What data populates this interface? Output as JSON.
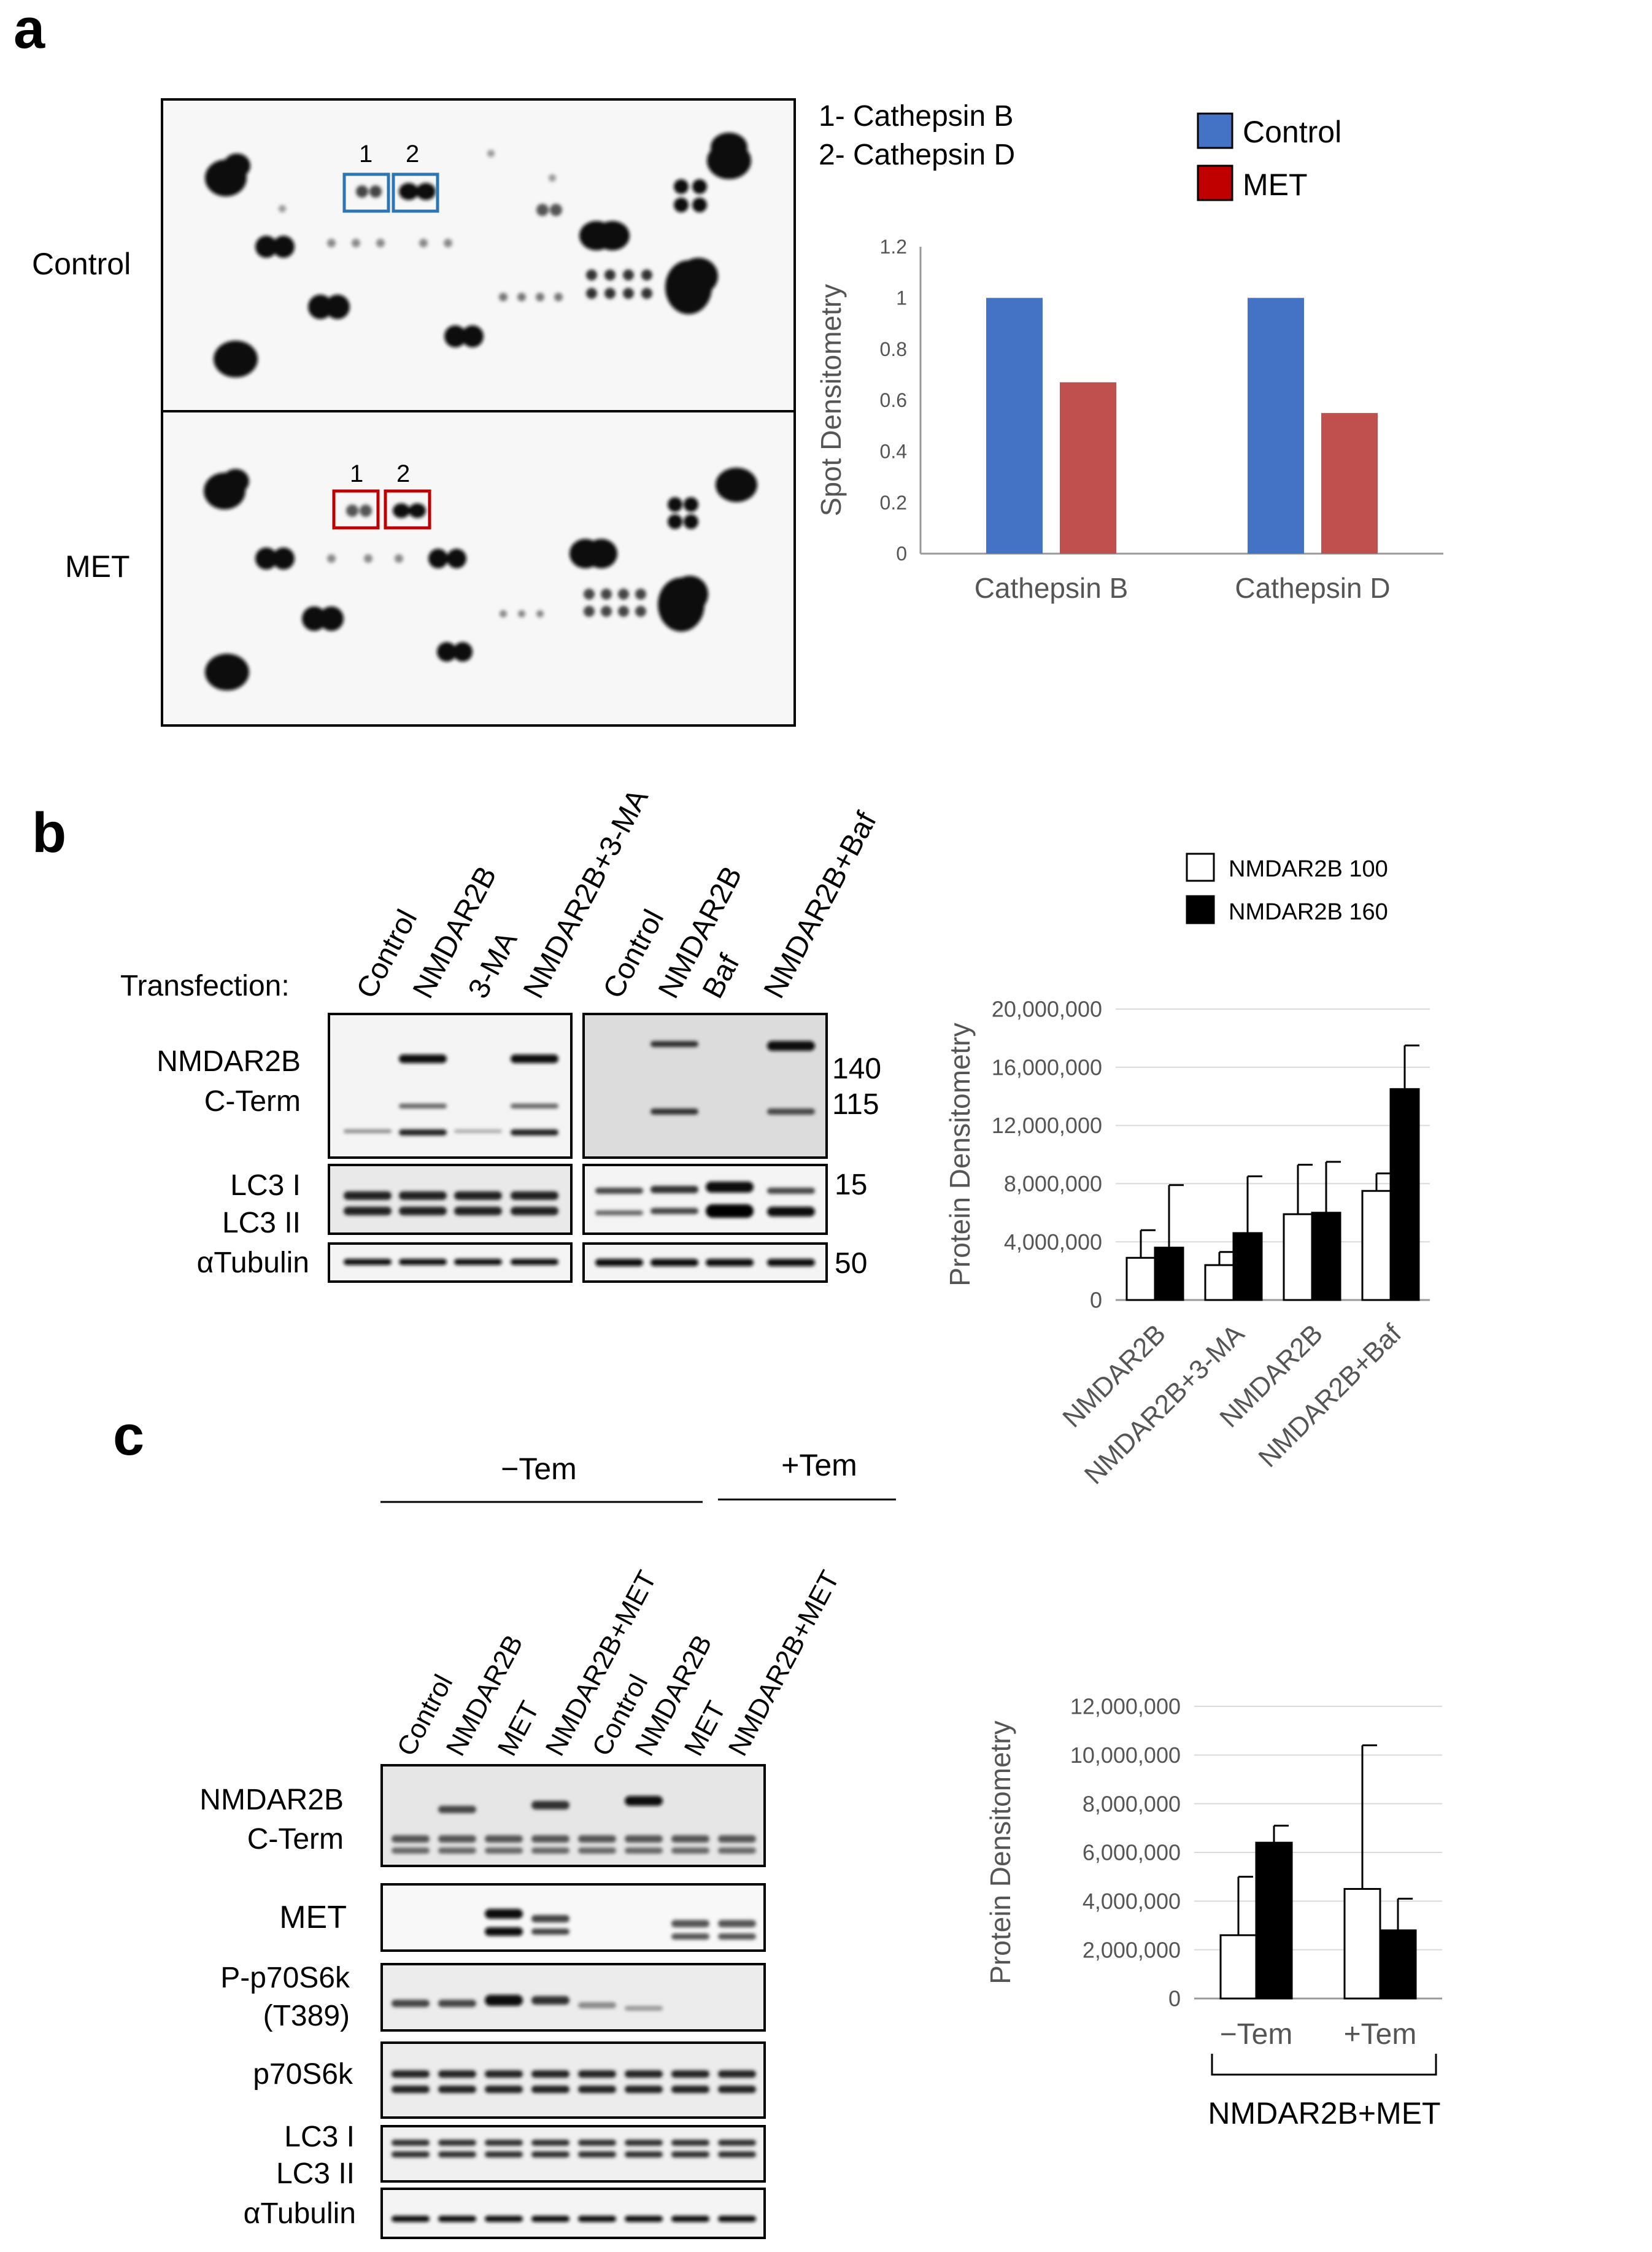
{
  "panels": {
    "a": {
      "letter": "a",
      "row_labels": [
        "Control",
        "MET"
      ],
      "spot_numbers": [
        "1",
        "2"
      ],
      "spot_key": [
        "1- Cathepsin B",
        "2- Cathepsin D"
      ],
      "colors": {
        "control": "#4472C4",
        "met": "#C00000",
        "met_bar": "#C0504D",
        "control_box": "#2E75B6",
        "met_box": "#C00000"
      }
    },
    "b": {
      "letter": "b",
      "transfection_label": "Transfection:",
      "lanes_left": [
        "Control",
        "NMDAR2B",
        "3-MA",
        "NMDAR2B+3-MA"
      ],
      "lanes_right": [
        "Control",
        "NMDAR2B",
        "Baf",
        "NMDAR2B+Baf"
      ],
      "blot_labels": [
        "NMDAR2B",
        "C-Term",
        "LC3 I",
        "LC3 II",
        "αTubulin"
      ],
      "mw_markers": [
        "140",
        "115",
        "15",
        "50"
      ]
    },
    "c": {
      "letter": "c",
      "group_labels": [
        "−Tem",
        "+Tem"
      ],
      "lanes": [
        "Control",
        "NMDAR2B",
        "MET",
        "NMDAR2B+MET",
        "Control",
        "NMDAR2B",
        "MET",
        "NMDAR2B+MET"
      ],
      "blot_labels": [
        "NMDAR2B",
        "C-Term",
        "MET",
        "P-p70S6k",
        "(T389)",
        "p70S6k",
        "LC3 I",
        "LC3 II",
        "αTubulin"
      ]
    }
  },
  "chart_data": [
    {
      "type": "bar",
      "title": "",
      "categories": [
        "Cathepsin B",
        "Cathepsin D"
      ],
      "series": [
        {
          "name": "Control",
          "values": [
            1.0,
            1.0
          ],
          "color": "#4472C4"
        },
        {
          "name": "MET",
          "values": [
            0.67,
            0.55
          ],
          "color": "#C0504D"
        }
      ],
      "xlabel": "",
      "ylabel": "Spot Densitometry",
      "ylim": [
        0,
        1.2
      ],
      "yticks": [
        "0",
        "0.2",
        "0.4",
        "0.6",
        "0.8",
        "1",
        "1.2"
      ],
      "legend": "top-right"
    },
    {
      "type": "bar",
      "title": "",
      "categories": [
        "NMDAR2B",
        "NMDAR2B+3-MA",
        "NMDAR2B",
        "NMDAR2B+Baf"
      ],
      "series": [
        {
          "name": "NMDAR2B 100",
          "values": [
            2900000,
            2400000,
            5900000,
            7500000
          ],
          "errors": [
            1900000,
            900000,
            3400000,
            1200000
          ],
          "color": "#ffffff"
        },
        {
          "name": "NMDAR2B 160",
          "values": [
            3600000,
            4600000,
            6000000,
            14500000
          ],
          "errors": [
            4300000,
            3900000,
            3500000,
            3000000
          ],
          "color": "#000000"
        }
      ],
      "xlabel": "",
      "ylabel": "Protein Densitometry",
      "ylim": [
        0,
        20000000
      ],
      "yticks": [
        "0",
        "4,000,000",
        "8,000,000",
        "12,000,000",
        "16,000,000",
        "20,000,000"
      ],
      "legend": "top"
    },
    {
      "type": "bar",
      "title": "",
      "categories": [
        "−Tem",
        "+Tem"
      ],
      "group_label": "NMDAR2B+MET",
      "series": [
        {
          "name": "NMDAR2B 100",
          "values": [
            2600000,
            4500000
          ],
          "errors": [
            2400000,
            5900000
          ],
          "color": "#ffffff"
        },
        {
          "name": "NMDAR2B 160",
          "values": [
            6400000,
            2800000
          ],
          "errors": [
            700000,
            1300000
          ],
          "color": "#000000"
        }
      ],
      "xlabel": "",
      "ylabel": "Protein Densitometry",
      "ylim": [
        0,
        12000000
      ],
      "yticks": [
        "0",
        "2,000,000",
        "4,000,000",
        "6,000,000",
        "8,000,000",
        "10,000,000",
        "12,000,000"
      ]
    }
  ]
}
